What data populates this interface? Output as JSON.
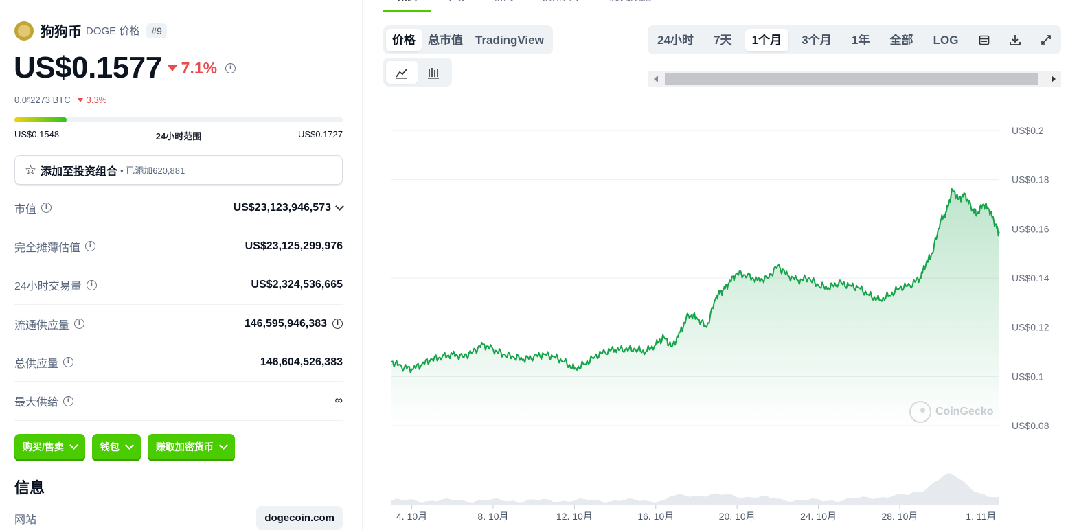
{
  "coin": {
    "name": "狗狗币",
    "symbol_label": "DOGE 价格",
    "rank": "#9",
    "price": "US$0.1577",
    "change_24h": "7.1%",
    "btc_price_prefix": "0.0",
    "btc_price_sub": "5",
    "btc_price_suffix": "2273 BTC",
    "btc_change": "3.3%",
    "range_low": "US$0.1548",
    "range_label": "24小时范围",
    "range_high": "US$0.1727",
    "range_position": 0.16
  },
  "portfolio": {
    "label": "添加至投资组合",
    "count": "• 已添加620,881"
  },
  "stats": [
    {
      "label": "市值",
      "value": "US$23,123,946,573"
    },
    {
      "label": "完全摊薄估值",
      "value": "US$23,125,299,976"
    },
    {
      "label": "24小时交易量",
      "value": "US$2,324,536,665"
    },
    {
      "label": "流通供应量",
      "value": "146,595,946,383"
    },
    {
      "label": "总供应量",
      "value": "146,604,526,383"
    },
    {
      "label": "最大供给",
      "value": "∞"
    }
  ],
  "actions": {
    "buy_sell": "购买/售卖",
    "wallet": "钱包",
    "earn": "赚取加密货币"
  },
  "info": {
    "title": "信息",
    "website_label": "网站",
    "website_value": "dogecoin.com"
  },
  "top_tabs": [
    "概要",
    "市场",
    "新闻",
    "相似代币",
    "历史数据"
  ],
  "chart_controls": {
    "metric_tabs": [
      "价格",
      "总市值",
      "TradingView"
    ],
    "metric_selected": "价格",
    "range_tabs": [
      "24小时",
      "7天",
      "1个月",
      "3个月",
      "1年",
      "全部",
      "LOG"
    ],
    "range_selected": "1个月",
    "chart_type_icons": [
      "line-chart-icon",
      "candlestick-icon"
    ],
    "tool_icons": [
      "calendar-icon",
      "download-icon",
      "expand-icon"
    ]
  },
  "watermark": "CoinGecko",
  "colors": {
    "accent_green": "#4bcc00",
    "line_green": "#16a34a",
    "down_red": "#e94c4c"
  },
  "chart_data": {
    "type": "area",
    "ylim": [
      0.08,
      0.2
    ],
    "y_ticks": [
      0.2,
      0.18,
      0.16,
      0.14,
      0.12,
      0.1,
      0.08
    ],
    "y_tick_labels": [
      "US$0.2",
      "US$0.18",
      "US$0.16",
      "US$0.14",
      "US$0.12",
      "US$0.1",
      "US$0.08"
    ],
    "x_ticks": [
      "4. 10月",
      "8. 10月",
      "12. 10月",
      "16. 10月",
      "20. 10月",
      "24. 10月",
      "28. 10月",
      "1. 11月"
    ],
    "x_tick_days": [
      4,
      8,
      12,
      16,
      20,
      24,
      28,
      32
    ],
    "series": [
      {
        "day": [
          3.0,
          3.5,
          4.0,
          4.5,
          5.0,
          5.5,
          6.0,
          6.5,
          7.0,
          7.5,
          8.0,
          8.5,
          9.0,
          9.5,
          10.0,
          10.5,
          11.0,
          11.5,
          12.0,
          12.5,
          13.0,
          13.5,
          14.0,
          14.5,
          15.0,
          15.5,
          16.0,
          16.4,
          16.8,
          17.2,
          17.6,
          18.0,
          18.5,
          19.0,
          19.3,
          19.6,
          20.0,
          20.5,
          21.0,
          21.5,
          22.0,
          22.5,
          23.0,
          23.5,
          24.0,
          24.5,
          25.0,
          25.5,
          26.0,
          26.5,
          27.0,
          27.5,
          28.0,
          28.5,
          29.0,
          29.3,
          29.6,
          30.0,
          30.3,
          30.6,
          30.9,
          31.2,
          31.5,
          31.8,
          32.1,
          32.4,
          32.7,
          32.9
        ],
        "price": [
          0.106,
          0.104,
          0.103,
          0.105,
          0.107,
          0.108,
          0.109,
          0.108,
          0.11,
          0.113,
          0.111,
          0.109,
          0.108,
          0.107,
          0.108,
          0.109,
          0.108,
          0.106,
          0.103,
          0.105,
          0.108,
          0.11,
          0.111,
          0.111,
          0.111,
          0.11,
          0.113,
          0.116,
          0.112,
          0.118,
          0.125,
          0.124,
          0.12,
          0.133,
          0.135,
          0.138,
          0.142,
          0.141,
          0.139,
          0.14,
          0.145,
          0.141,
          0.139,
          0.14,
          0.137,
          0.136,
          0.138,
          0.137,
          0.136,
          0.133,
          0.131,
          0.133,
          0.136,
          0.137,
          0.14,
          0.146,
          0.15,
          0.163,
          0.167,
          0.176,
          0.172,
          0.174,
          0.169,
          0.166,
          0.17,
          0.168,
          0.162,
          0.158
        ]
      }
    ]
  }
}
